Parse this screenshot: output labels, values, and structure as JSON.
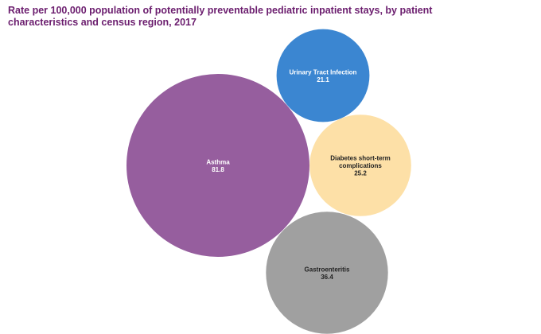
{
  "chart_data": {
    "type": "bubble",
    "title": "Rate per 100,000 population of potentially preventable pediatric inpatient stays, by patient characteristics and census region, 2017",
    "series": [
      {
        "name": "Asthma",
        "value": 81.8,
        "value_label": "81.8",
        "color": "#965e9e",
        "text_color": "#ffffff"
      },
      {
        "name": "Urinary Tract Infection",
        "value": 21.1,
        "value_label": "21.1",
        "color": "#3b86d1",
        "text_color": "#ffffff"
      },
      {
        "name": "Diabetes short-term complications",
        "value": 25.2,
        "value_label": "25.2",
        "color": "#fde0a7",
        "text_color": "#222222"
      },
      {
        "name": "Gastroenteritis",
        "value": 36.4,
        "value_label": "36.4",
        "color": "#a0a0a0",
        "text_color": "#222222"
      }
    ]
  }
}
